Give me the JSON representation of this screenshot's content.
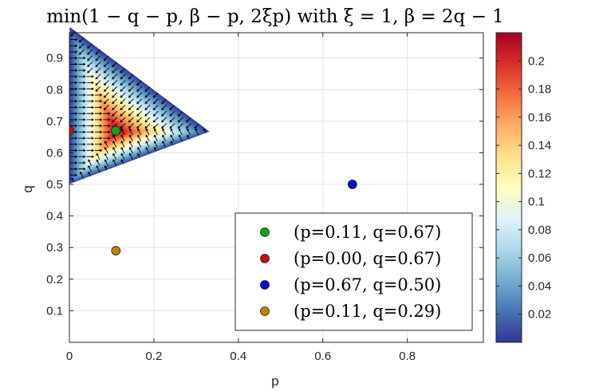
{
  "chart_data": {
    "type": "heatmap",
    "title": "min(1 − q − p, β − p, 2ξp) with ξ = 1, β = 2q − 1",
    "xlabel": "p",
    "ylabel": "q",
    "xlim": [
      0,
      0.98
    ],
    "ylim": [
      0,
      0.98
    ],
    "xticks": [
      0,
      0.2,
      0.4,
      0.6,
      0.8
    ],
    "xtick_labels": [
      "0",
      "0.2",
      "0.4",
      "0.6",
      "0.8"
    ],
    "yticks": [
      0.1,
      0.2,
      0.3,
      0.4,
      0.5,
      0.6,
      0.7,
      0.8,
      0.9
    ],
    "ytick_labels": [
      "0.1",
      "0.2",
      "0.3",
      "0.4",
      "0.5",
      "0.6",
      "0.7",
      "0.8",
      "0.9"
    ],
    "grid": true,
    "region": {
      "vertices": [
        [
          0,
          0.5
        ],
        [
          0,
          1
        ],
        [
          0.3333,
          0.6667
        ]
      ]
    },
    "function": {
      "xi": 1
    },
    "colorbar": {
      "colormap": "RdYlBu reversed",
      "range": [
        0,
        0.22
      ],
      "ticks": [
        0.02,
        0.04,
        0.06,
        0.08,
        0.1,
        0.12,
        0.14,
        0.16,
        0.18,
        0.2
      ],
      "tick_labels": [
        "0.02",
        "0.04",
        "0.06",
        "0.08",
        "0.1",
        "0.12",
        "0.14",
        "0.16",
        "0.18",
        "0.2"
      ]
    },
    "points": [
      {
        "p": 0.11,
        "q": 0.67,
        "color": "#1aa01a",
        "label": "(p=0.11, q=0.67)"
      },
      {
        "p": 0.0,
        "q": 0.67,
        "color": "#c01010",
        "label": "(p=0.00, q=0.67)"
      },
      {
        "p": 0.67,
        "q": 0.5,
        "color": "#0a10c8",
        "label": "(p=0.67, q=0.50)"
      },
      {
        "p": 0.11,
        "q": 0.29,
        "color": "#b8860b",
        "label": "(p=0.11, q=0.29)"
      }
    ],
    "legend_position": "bottom-right"
  }
}
